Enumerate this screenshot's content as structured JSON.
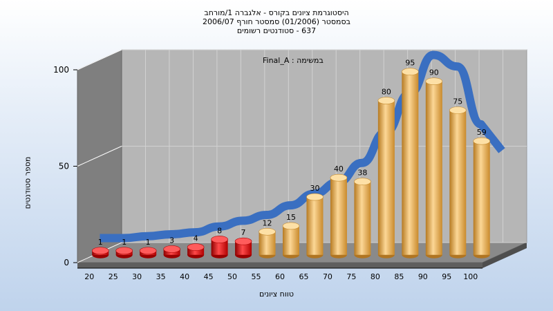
{
  "title_lines": [
    "היסטוגרמת ציונים בקורס - אלגברה 1/מורחב",
    "בסמסטר (01/2006) סמסטר חורף 2006/07",
    "637 - סטודנטים רשומים"
  ],
  "annotation": "במשימה : Final_A",
  "chart_data": {
    "type": "bar",
    "categories": [
      "20",
      "25",
      "30",
      "35",
      "40",
      "45",
      "50",
      "55",
      "60",
      "65",
      "70",
      "75",
      "80",
      "85",
      "90",
      "95",
      "100"
    ],
    "series": [
      {
        "values": [
          1,
          1,
          1,
          3,
          4,
          8,
          7,
          12,
          15,
          30,
          40,
          38,
          80,
          95,
          90,
          75,
          59
        ]
      }
    ],
    "curve": [
      7,
      7,
      8,
      9,
      10,
      13,
      16,
      19,
      24,
      30,
      36,
      46,
      62,
      82,
      102,
      96,
      66
    ],
    "ylim": [
      0,
      100
    ],
    "yticks": [
      0,
      50,
      100
    ],
    "ylabel": "מספר סטודנטים",
    "xlabel": "טווח ציונים",
    "colors": {
      "low": "#d81a1a",
      "high": "#f0b357",
      "curve": "#3a6fc1",
      "wall": "#b6b6b6",
      "side": "#7f7f7f"
    },
    "low_threshold_category": "55"
  }
}
